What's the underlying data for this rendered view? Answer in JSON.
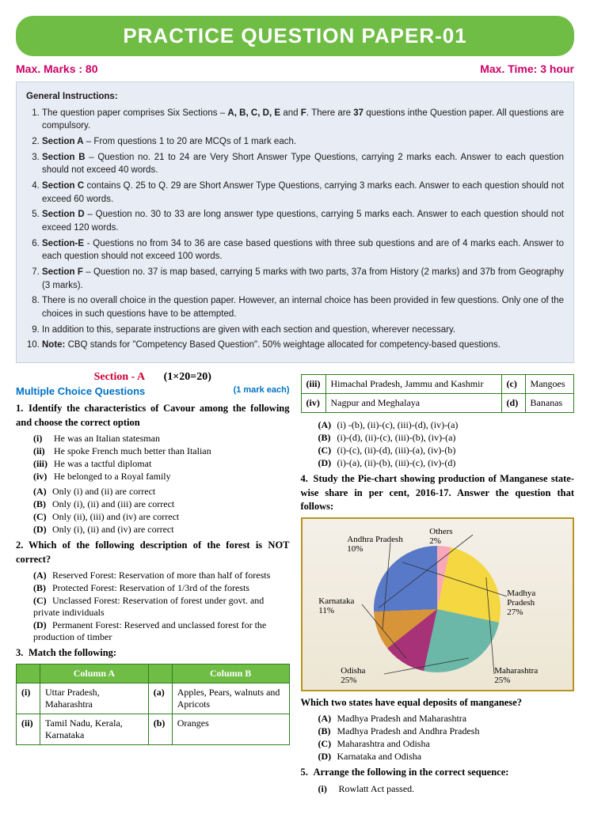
{
  "title": "PRACTICE QUESTION PAPER-01",
  "max_marks": "Max. Marks : 80",
  "max_time": "Max. Time: 3 hour",
  "gi_title": "General Instructions:",
  "instructions": [
    "The question paper comprises Six Sections – <b>A, B, C, D, E</b> and <b>F</b>. There are <b>37</b> questions inthe Question paper. All questions are compulsory.",
    "<b>Section A</b> – From questions 1 to 20 are MCQs of 1 mark each.",
    "<b>Section B</b> – Question no. 21 to 24 are Very Short Answer Type Questions, carrying 2 marks each. Answer to each question should not exceed 40 words.",
    "<b>Section C</b> contains Q. 25 to Q. 29 are Short Answer Type Questions, carrying 3 marks each. Answer to each question should not exceed 60 words.",
    "<b>Section D</b> – Question no. 30 to 33 are long answer type questions, carrying 5 marks each. Answer to each question should not exceed 120 words.",
    "<b>Section-E</b> - Questions no from 34 to 36 are case based questions with three sub questions and are of 4 marks each. Answer to each question should not exceed 100 words.",
    "<b>Section F</b> – Question no. 37 is map based, carrying 5 marks with two parts, 37a from History (2 marks) and 37b from Geography (3 marks).",
    "There is no overall choice in the question paper. However, an internal choice has been provided in few questions. Only one of the choices in such questions have to be attempted.",
    "In addition to this, separate instructions are given with each section and question, wherever necessary.",
    "<b>Note:</b> CBQ stands for \"Competency Based Question\". 50% weightage allocated for competency-based questions."
  ],
  "section_a": {
    "name": "Section - A",
    "marks_scheme": "(1×20=20)"
  },
  "mcq_header": {
    "title": "Multiple Choice Questions",
    "each": "(1 mark each)"
  },
  "q1": {
    "num": "1.",
    "text": "Identify the characteristics of Cavour among the following and choose the correct option",
    "roman": [
      {
        "k": "(i)",
        "t": "He was an Italian statesman"
      },
      {
        "k": "(ii)",
        "t": "He spoke French much better than Italian"
      },
      {
        "k": "(iii)",
        "t": "He was a tactful diplomat"
      },
      {
        "k": "(iv)",
        "t": "He belonged to a Royal family"
      }
    ],
    "options": [
      {
        "k": "(A)",
        "t": "Only (i) and (ii) are correct"
      },
      {
        "k": "(B)",
        "t": "Only (i), (ii) and (iii) are correct"
      },
      {
        "k": "(C)",
        "t": "Only (ii), (iii) and (iv) are correct"
      },
      {
        "k": "(D)",
        "t": "Only (i), (ii) and (iv) are correct"
      }
    ]
  },
  "q2": {
    "num": "2.",
    "text": "Which of the following description of the forest is NOT correct?",
    "options": [
      {
        "k": "(A)",
        "t": "Reserved Forest: Reservation of more than half of forests"
      },
      {
        "k": "(B)",
        "t": "Protected Forest: Reservation of 1/3rd of the forests"
      },
      {
        "k": "(C)",
        "t": "Unclassed Forest: Reservation of forest under govt. and private individuals"
      },
      {
        "k": "(D)",
        "t": "Permanent Forest: Reserved and unclassed forest for the production of timber"
      }
    ]
  },
  "q3": {
    "num": "3.",
    "text": "Match the following:",
    "headers": [
      "Column A",
      "Column B"
    ],
    "rows_left": [
      {
        "rk": "(i)",
        "a": "Uttar Pradesh, Maharashtra",
        "ck": "(a)",
        "b": "Apples, Pears, walnuts and Apricots"
      },
      {
        "rk": "(ii)",
        "a": "Tamil Nadu, Kerala, Karnataka",
        "ck": "(b)",
        "b": "Oranges"
      }
    ],
    "rows_right": [
      {
        "rk": "(iii)",
        "a": "Himachal Pradesh, Jammu and Kashmir",
        "ck": "(c)",
        "b": "Mangoes"
      },
      {
        "rk": "(iv)",
        "a": "Nagpur and Meghalaya",
        "ck": "(d)",
        "b": "Bananas"
      }
    ],
    "answers": [
      {
        "k": "(A)",
        "t": "(i) -(b), (ii)-(c), (iii)-(d), (iv)-(a)"
      },
      {
        "k": "(B)",
        "t": "(i)-(d), (ii)-(c), (iii)-(b), (iv)-(a)"
      },
      {
        "k": "(C)",
        "t": "(i)-(c), (ii)-(d), (iii)-(a), (iv)-(b)"
      },
      {
        "k": "(D)",
        "t": "(i)-(a), (ii)-(b), (iii)-(c), (iv)-(d)"
      }
    ]
  },
  "q4": {
    "num": "4.",
    "text": "Study the Pie-chart showing production of Manganese state-wise share in per cent, 2016-17. Answer the question that follows:",
    "chart": {
      "type": "pie",
      "background_color": "#ede6d4",
      "border_color": "#b8941f",
      "slices": [
        {
          "label": "Madhya Pradesh",
          "value": 27,
          "color": "#f8a8b8"
        },
        {
          "label": "Maharashtra",
          "value": 25,
          "color": "#f5d742"
        },
        {
          "label": "Odisha",
          "value": 25,
          "color": "#6bb8a8"
        },
        {
          "label": "Karnataka",
          "value": 11,
          "color": "#a83278"
        },
        {
          "label": "Andhra Pradesh",
          "value": 10,
          "color": "#d89438"
        },
        {
          "label": "Others",
          "value": 2,
          "color": "#5878c8"
        }
      ],
      "label_fontsize": 11
    },
    "sub_question": "Which two states have equal deposits of manganese?",
    "options": [
      {
        "k": "(A)",
        "t": "Madhya Pradesh and Maharashtra"
      },
      {
        "k": "(B)",
        "t": "Madhya Pradesh and Andhra Pradesh"
      },
      {
        "k": "(C)",
        "t": "Maharashtra and Odisha"
      },
      {
        "k": "(D)",
        "t": "Karnataka and Odisha"
      }
    ]
  },
  "q5": {
    "num": "5.",
    "text": "Arrange the following in the correct sequence:",
    "roman": [
      {
        "k": "(i)",
        "t": "Rowlatt Act passed."
      }
    ]
  }
}
